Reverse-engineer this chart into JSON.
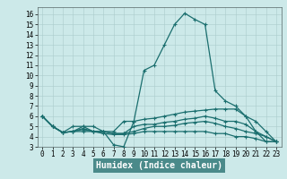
{
  "title": "",
  "xlabel": "Humidex (Indice chaleur)",
  "ylabel": "",
  "background_color": "#cce9e9",
  "xlabel_bg_color": "#4a8a8a",
  "xlabel_fg_color": "#ffffff",
  "grid_color": "#aacccc",
  "line_color": "#1a6e6e",
  "xlim": [
    -0.5,
    23.5
  ],
  "ylim": [
    3.0,
    16.7
  ],
  "xticks": [
    0,
    1,
    2,
    3,
    4,
    5,
    6,
    7,
    8,
    9,
    10,
    11,
    12,
    13,
    14,
    15,
    16,
    17,
    18,
    19,
    20,
    21,
    22,
    23
  ],
  "yticks": [
    3,
    4,
    5,
    6,
    7,
    8,
    9,
    10,
    11,
    12,
    13,
    14,
    15,
    16
  ],
  "lines": [
    {
      "x": [
        0,
        1,
        2,
        3,
        4,
        5,
        6,
        7,
        8,
        9,
        10,
        11,
        12,
        13,
        14,
        15,
        16,
        17,
        18,
        19,
        20,
        21,
        22,
        23
      ],
      "y": [
        6.0,
        5.0,
        4.4,
        5.0,
        5.0,
        4.5,
        4.5,
        3.2,
        3.0,
        5.5,
        10.5,
        11.0,
        13.0,
        15.0,
        16.1,
        15.5,
        15.0,
        8.5,
        7.5,
        7.0,
        6.0,
        4.5,
        3.5,
        3.5
      ]
    },
    {
      "x": [
        0,
        1,
        2,
        3,
        4,
        5,
        6,
        7,
        8,
        9,
        10,
        11,
        12,
        13,
        14,
        15,
        16,
        17,
        18,
        19,
        20,
        21,
        22,
        23
      ],
      "y": [
        6.0,
        5.0,
        4.4,
        4.5,
        5.0,
        5.0,
        4.5,
        4.5,
        5.5,
        5.5,
        5.7,
        5.8,
        6.0,
        6.2,
        6.4,
        6.5,
        6.6,
        6.7,
        6.7,
        6.7,
        6.0,
        5.5,
        4.5,
        3.5
      ]
    },
    {
      "x": [
        0,
        1,
        2,
        3,
        4,
        5,
        6,
        7,
        8,
        9,
        10,
        11,
        12,
        13,
        14,
        15,
        16,
        17,
        18,
        19,
        20,
        21,
        22,
        23
      ],
      "y": [
        6.0,
        5.0,
        4.4,
        4.5,
        4.8,
        4.5,
        4.5,
        4.3,
        4.3,
        5.0,
        5.2,
        5.2,
        5.4,
        5.5,
        5.7,
        5.8,
        6.0,
        5.8,
        5.5,
        5.5,
        5.2,
        4.5,
        4.0,
        3.5
      ]
    },
    {
      "x": [
        0,
        1,
        2,
        3,
        4,
        5,
        6,
        7,
        8,
        9,
        10,
        11,
        12,
        13,
        14,
        15,
        16,
        17,
        18,
        19,
        20,
        21,
        22,
        23
      ],
      "y": [
        6.0,
        5.0,
        4.4,
        4.5,
        4.7,
        4.5,
        4.5,
        4.3,
        4.3,
        4.5,
        4.8,
        5.0,
        5.0,
        5.1,
        5.3,
        5.4,
        5.5,
        5.3,
        5.0,
        4.8,
        4.5,
        4.3,
        4.0,
        3.5
      ]
    },
    {
      "x": [
        0,
        1,
        2,
        3,
        4,
        5,
        6,
        7,
        8,
        9,
        10,
        11,
        12,
        13,
        14,
        15,
        16,
        17,
        18,
        19,
        20,
        21,
        22,
        23
      ],
      "y": [
        6.0,
        5.0,
        4.4,
        4.5,
        4.5,
        4.5,
        4.3,
        4.2,
        4.2,
        4.3,
        4.5,
        4.5,
        4.5,
        4.5,
        4.5,
        4.5,
        4.5,
        4.3,
        4.3,
        4.0,
        4.0,
        3.8,
        3.5,
        3.5
      ]
    }
  ],
  "tick_fontsize": 5.5,
  "xlabel_fontsize": 7,
  "marker_size": 3,
  "linewidth": 0.9
}
